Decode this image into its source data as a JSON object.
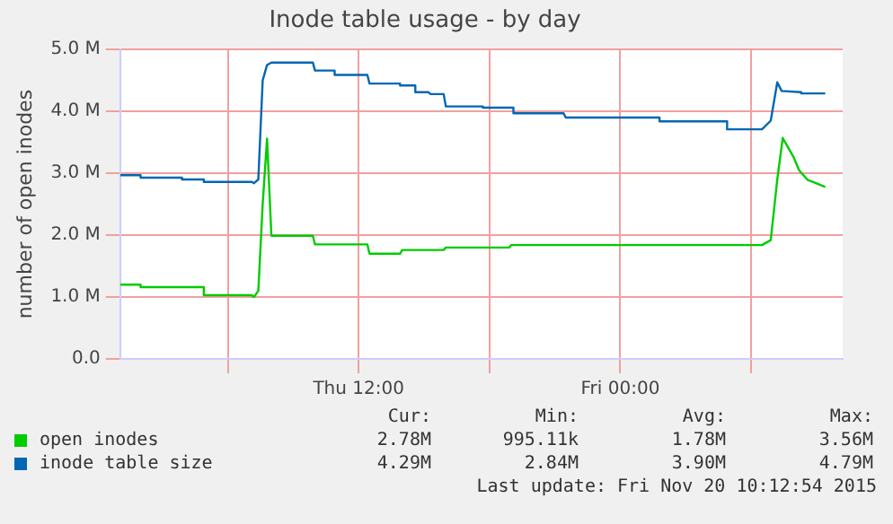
{
  "chart_data": {
    "type": "line",
    "title": "Inode table usage - by day",
    "ylabel": "number of open inodes",
    "xlim": [
      "2015-11-19T01:04",
      "2015-11-20T10:12"
    ],
    "xticks": [
      {
        "value": "2015-11-19T06:00",
        "label": null
      },
      {
        "value": "2015-11-19T12:00",
        "label": "Thu 12:00"
      },
      {
        "value": "2015-11-19T18:00",
        "label": null
      },
      {
        "value": "2015-11-20T00:00",
        "label": "Fri 00:00"
      },
      {
        "value": "2015-11-20T06:00",
        "label": null
      }
    ],
    "ylim": [
      0,
      5
    ],
    "yticks": [
      {
        "value": 0,
        "label": "0.0"
      },
      {
        "value": 1,
        "label": "1.0 M"
      },
      {
        "value": 2,
        "label": "2.0 M"
      },
      {
        "value": 3,
        "label": "3.0 M"
      },
      {
        "value": 4,
        "label": "4.0 M"
      },
      {
        "value": 5,
        "label": "5.0 M"
      }
    ],
    "grid": true,
    "legend": "bottom",
    "marker": "none",
    "line_style": "solid",
    "series": [
      {
        "name": "open inodes",
        "color": "#00cc00",
        "x": [
          "2015-11-19T01:04",
          "2015-11-19T02:00",
          "2015-11-19T02:00",
          "2015-11-19T04:54",
          "2015-11-19T04:54",
          "2015-11-19T07:06",
          "2015-11-19T07:12",
          "2015-11-19T07:24",
          "2015-11-19T07:36",
          "2015-11-19T07:48",
          "2015-11-19T08:00",
          "2015-11-19T09:54",
          "2015-11-19T10:00",
          "2015-11-19T12:24",
          "2015-11-19T12:30",
          "2015-11-19T13:54",
          "2015-11-19T14:00",
          "2015-11-19T15:54",
          "2015-11-19T16:00",
          "2015-11-19T18:54",
          "2015-11-19T19:00",
          "2015-11-20T06:30",
          "2015-11-20T06:54",
          "2015-11-20T07:12",
          "2015-11-20T07:27",
          "2015-11-20T07:57",
          "2015-11-20T08:12",
          "2015-11-20T08:36",
          "2015-11-20T08:54",
          "2015-11-20T09:24"
        ],
        "values": [
          1.2,
          1.2,
          1.16,
          1.16,
          1.03,
          1.03,
          1.0,
          1.1,
          2.5,
          3.56,
          1.99,
          1.99,
          1.85,
          1.85,
          1.7,
          1.7,
          1.76,
          1.76,
          1.8,
          1.8,
          1.84,
          1.84,
          1.92,
          2.9,
          3.57,
          3.26,
          3.05,
          2.89,
          2.85,
          2.78
        ]
      },
      {
        "name": "inode table size",
        "color": "#0066b3",
        "x": [
          "2015-11-19T01:04",
          "2015-11-19T02:00",
          "2015-11-19T02:00",
          "2015-11-19T03:54",
          "2015-11-19T03:54",
          "2015-11-19T04:54",
          "2015-11-19T04:54",
          "2015-11-19T07:06",
          "2015-11-19T07:12",
          "2015-11-19T07:24",
          "2015-11-19T07:36",
          "2015-11-19T07:48",
          "2015-11-19T08:00",
          "2015-11-19T09:54",
          "2015-11-19T10:00",
          "2015-11-19T10:54",
          "2015-11-19T10:54",
          "2015-11-19T12:24",
          "2015-11-19T12:30",
          "2015-11-19T13:54",
          "2015-11-19T13:54",
          "2015-11-19T14:36",
          "2015-11-19T14:36",
          "2015-11-19T15:12",
          "2015-11-19T15:18",
          "2015-11-19T15:54",
          "2015-11-19T16:00",
          "2015-11-19T17:42",
          "2015-11-19T17:42",
          "2015-11-19T19:06",
          "2015-11-19T19:06",
          "2015-11-19T21:24",
          "2015-11-19T21:30",
          "2015-11-20T01:48",
          "2015-11-20T01:48",
          "2015-11-20T04:54",
          "2015-11-20T04:54",
          "2015-11-20T06:30",
          "2015-11-20T06:54",
          "2015-11-20T07:12",
          "2015-11-20T07:24",
          "2015-11-20T08:18",
          "2015-11-20T08:18",
          "2015-11-20T09:24"
        ],
        "values": [
          2.97,
          2.97,
          2.93,
          2.93,
          2.9,
          2.9,
          2.86,
          2.86,
          2.84,
          2.9,
          4.5,
          4.75,
          4.79,
          4.79,
          4.66,
          4.66,
          4.59,
          4.59,
          4.45,
          4.45,
          4.42,
          4.42,
          4.31,
          4.31,
          4.28,
          4.28,
          4.08,
          4.08,
          4.06,
          4.06,
          3.97,
          3.97,
          3.9,
          3.9,
          3.84,
          3.84,
          3.71,
          3.71,
          3.85,
          4.47,
          4.33,
          4.31,
          4.29,
          4.29
        ]
      }
    ],
    "annotations": [
      "Cur:",
      "Min:",
      "Avg:",
      "Max:",
      "2.78M",
      "995.11k",
      "1.78M",
      "3.56M",
      "4.29M",
      "2.84M",
      "3.90M",
      "4.79M",
      "Last update: Fri Nov 20 10:12:54 2015"
    ]
  }
}
